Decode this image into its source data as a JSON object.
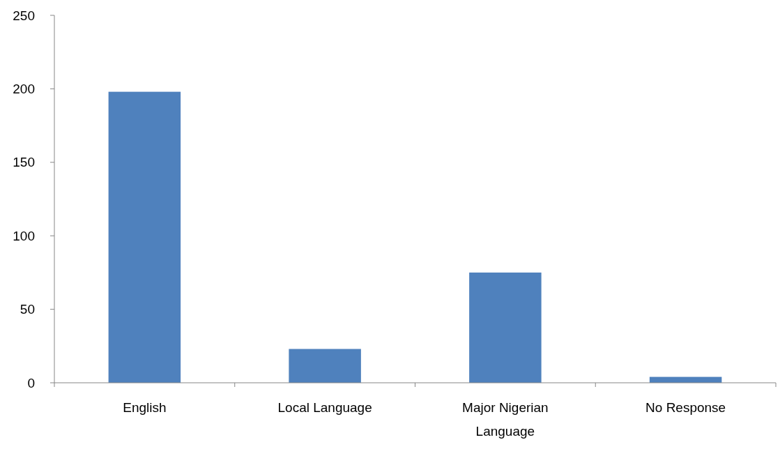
{
  "chart_data": {
    "type": "bar",
    "categories": [
      "English",
      "Local Language",
      "Major Nigerian Language",
      "No Response"
    ],
    "values": [
      198,
      23,
      75,
      4
    ],
    "color": "#4f81bd",
    "ylim": [
      0,
      250
    ],
    "yticks": [
      0,
      50,
      100,
      150,
      200,
      250
    ]
  }
}
